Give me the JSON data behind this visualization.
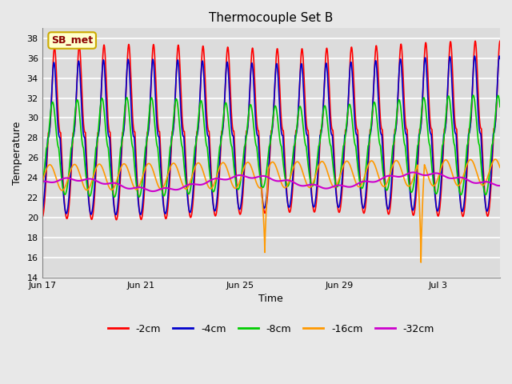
{
  "title": "Thermocouple Set B",
  "xlabel": "Time",
  "ylabel": "Temperature",
  "ylim": [
    14,
    39
  ],
  "yticks": [
    14,
    16,
    18,
    20,
    22,
    24,
    26,
    28,
    30,
    32,
    34,
    36,
    38
  ],
  "background_color": "#e8e8e8",
  "plot_bg_color": "#dcdcdc",
  "series": [
    {
      "label": "-2cm",
      "color": "#ff0000",
      "lw": 1.2
    },
    {
      "label": "-4cm",
      "color": "#0000cc",
      "lw": 1.2
    },
    {
      "label": "-8cm",
      "color": "#00cc00",
      "lw": 1.2
    },
    {
      "label": "-16cm",
      "color": "#ff9900",
      "lw": 1.2
    },
    {
      "label": "-32cm",
      "color": "#cc00cc",
      "lw": 1.5
    }
  ],
  "annotation_label": "SB_met",
  "x_tick_labels": [
    "Jun 17",
    "Jun 21",
    "Jun 25",
    "Jun 29",
    "Jul 3"
  ],
  "x_tick_positions": [
    0,
    4,
    8,
    12,
    16
  ],
  "legend_ncol": 5,
  "total_days": 18.5
}
